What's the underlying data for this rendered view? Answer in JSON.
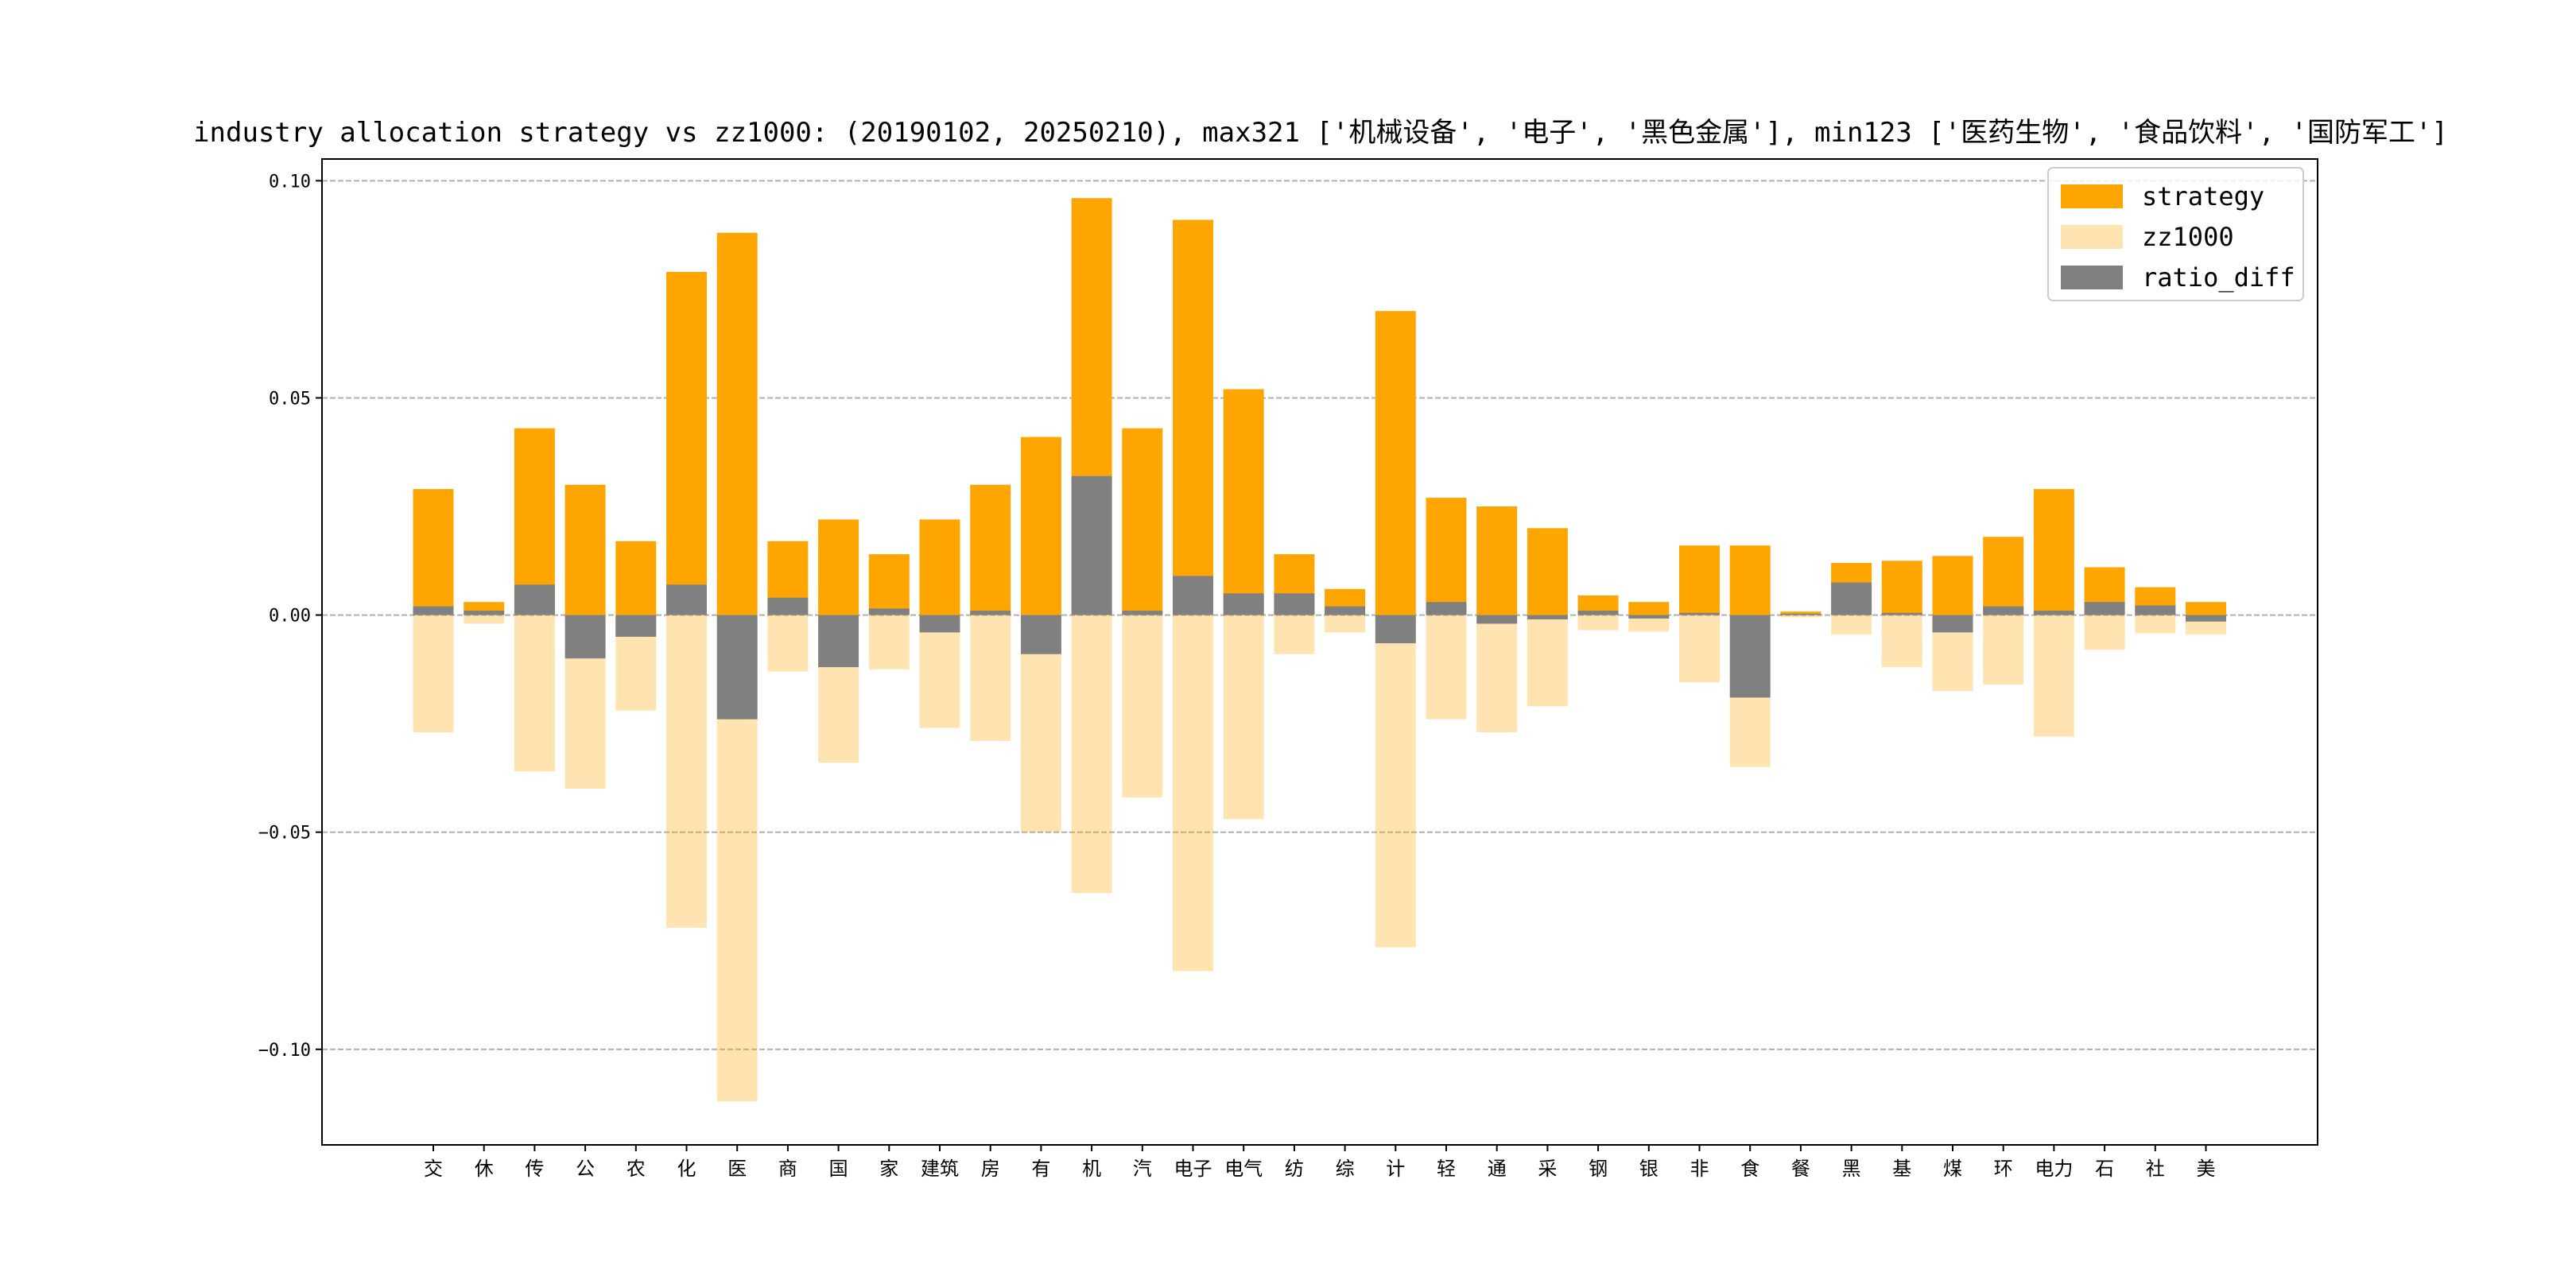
{
  "chart_data": {
    "type": "bar",
    "title": "industry allocation strategy vs zz1000: (20190102, 20250210), max321 ['机械设备', '电子', '黑色金属'], min123 ['医药生物', '食品饮料', '国防军工']",
    "xlabel": "",
    "ylabel": "",
    "ylim": [
      -0.122,
      0.105
    ],
    "yticks": [
      0.1,
      0.05,
      0.0,
      -0.05,
      -0.1
    ],
    "ytick_labels": [
      "0.10",
      "0.05",
      "0.00",
      "−0.05",
      "−0.10"
    ],
    "grid": "horizontal dashed",
    "legend_position": "top-right",
    "categories": [
      "交",
      "休",
      "传",
      "公",
      "农",
      "化",
      "医",
      "商",
      "国",
      "家",
      "建筑",
      "房",
      "有",
      "机",
      "汽",
      "电子",
      "电气",
      "纺",
      "综",
      "计",
      "轻",
      "通",
      "采",
      "钢",
      "银",
      "非",
      "食",
      "餐",
      "黑",
      "基",
      "煤",
      "环",
      "电力",
      "石",
      "社",
      "美"
    ],
    "series": [
      {
        "name": "strategy",
        "color": "#FFA500",
        "alpha": 1.0,
        "values": [
          0.029,
          0.003,
          0.043,
          0.03,
          0.017,
          0.079,
          0.088,
          0.017,
          0.022,
          0.014,
          0.022,
          0.03,
          0.041,
          0.096,
          0.043,
          0.091,
          0.052,
          0.014,
          0.006,
          0.07,
          0.027,
          0.025,
          0.02,
          0.0045,
          0.003,
          0.016,
          0.016,
          0.0008,
          0.012,
          0.0125,
          0.0136,
          0.018,
          0.029,
          0.011,
          0.0064,
          0.003
        ]
      },
      {
        "name": "zz1000",
        "color": "#FFA500",
        "alpha": 0.3,
        "values": [
          -0.027,
          -0.002,
          -0.036,
          -0.04,
          -0.022,
          -0.072,
          -0.112,
          -0.013,
          -0.034,
          -0.0125,
          -0.026,
          -0.029,
          -0.05,
          -0.064,
          -0.042,
          -0.082,
          -0.047,
          -0.009,
          -0.004,
          -0.0765,
          -0.024,
          -0.027,
          -0.021,
          -0.0035,
          -0.0038,
          -0.0155,
          -0.035,
          -0.0005,
          -0.0045,
          -0.012,
          -0.0175,
          -0.016,
          -0.028,
          -0.008,
          -0.0042,
          -0.0045
        ]
      },
      {
        "name": "ratio_diff",
        "color": "#808080",
        "alpha": 1.0,
        "values": [
          0.002,
          0.001,
          0.007,
          -0.01,
          -0.005,
          0.007,
          -0.024,
          0.004,
          -0.012,
          0.0015,
          -0.004,
          0.001,
          -0.009,
          0.032,
          0.001,
          0.009,
          0.005,
          0.005,
          0.002,
          -0.0065,
          0.003,
          -0.002,
          -0.001,
          0.001,
          -0.0008,
          0.0005,
          -0.019,
          0.0003,
          0.0075,
          0.0005,
          -0.004,
          0.002,
          0.001,
          0.003,
          0.0022,
          -0.0015
        ]
      }
    ]
  }
}
